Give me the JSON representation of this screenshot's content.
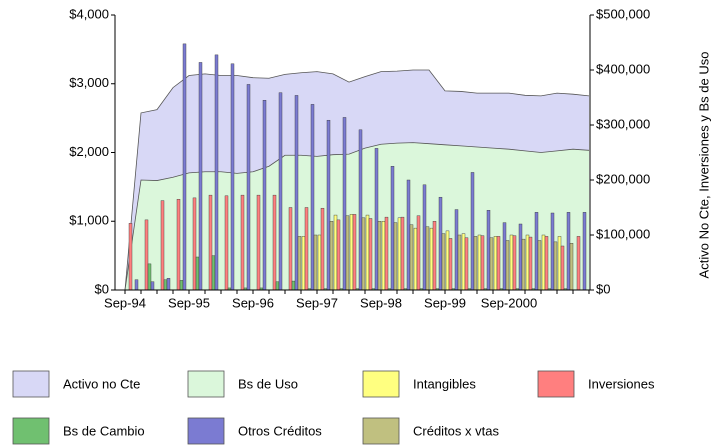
{
  "chart_data": {
    "type": "bar",
    "y2_label": "Activo No Cte, Inversiones y Bs de Uso",
    "categories": [
      "Sep-94",
      null,
      null,
      null,
      "Sep-95",
      null,
      null,
      null,
      "Sep-96",
      null,
      null,
      null,
      "Sep-97",
      null,
      null,
      null,
      "Sep-98",
      null,
      null,
      null,
      "Sep-99",
      null,
      null,
      null,
      "Sep-2000",
      null,
      null,
      null,
      null,
      null
    ],
    "ylim": [
      0,
      4000
    ],
    "yticks": [
      {
        "value": 0,
        "label": "$0"
      },
      {
        "value": 1000,
        "label": "$1,000"
      },
      {
        "value": 2000,
        "label": "$2,000"
      },
      {
        "value": 3000,
        "label": "$3,000"
      },
      {
        "value": 4000,
        "label": "$4,000"
      }
    ],
    "y2lim": [
      0,
      500000
    ],
    "y2ticks": [
      {
        "value": 0,
        "label": "$0"
      },
      {
        "value": 100000,
        "label": "$100,000"
      },
      {
        "value": 200000,
        "label": "$200,000"
      },
      {
        "value": 300000,
        "label": "$300,000"
      },
      {
        "value": 400000,
        "label": "$400,000"
      },
      {
        "value": 500000,
        "label": "$500,000"
      }
    ],
    "series": [
      {
        "name": "Activo no Cte",
        "type": "area",
        "axis": "y2",
        "color": "#d8d8f6",
        "values": [
          0,
          322000,
          328000,
          368000,
          390000,
          393000,
          390000,
          390000,
          386000,
          385000,
          392000,
          395000,
          397000,
          393000,
          378000,
          388000,
          397000,
          398000,
          400000,
          400000,
          362000,
          361000,
          358000,
          358000,
          358000,
          354000,
          353000,
          358000,
          356000,
          353000
        ]
      },
      {
        "name": "Bs de Uso",
        "type": "area",
        "axis": "y2",
        "color": "#dbf7db",
        "values": [
          0,
          200000,
          199000,
          205000,
          213000,
          215000,
          215000,
          212000,
          215000,
          225000,
          245000,
          245000,
          243000,
          246000,
          247000,
          258000,
          265000,
          267000,
          268000,
          266000,
          264000,
          262000,
          260000,
          258000,
          256000,
          253000,
          250000,
          253000,
          256000,
          254000
        ]
      },
      {
        "name": "Intangibles",
        "type": "bar",
        "color": "#ffff80",
        "values": [
          0,
          0,
          0,
          0,
          0,
          0,
          0,
          0,
          0,
          0,
          0,
          0,
          780,
          800,
          1090,
          1100,
          1090,
          1000,
          1050,
          900,
          900,
          860,
          820,
          800,
          780,
          800,
          800,
          800,
          780,
          0
        ]
      },
      {
        "name": "Inversiones",
        "type": "bar",
        "color": "#ff7f7f",
        "values": [
          0,
          970,
          1020,
          1300,
          1320,
          1340,
          1380,
          1370,
          1380,
          1380,
          1380,
          1200,
          1200,
          1190,
          1020,
          1100,
          1040,
          1060,
          1060,
          1080,
          1000,
          750,
          760,
          790,
          780,
          790,
          770,
          780,
          640,
          780
        ]
      },
      {
        "name": "Bs de Cambio",
        "type": "bar",
        "color": "#70c070",
        "values": [
          0,
          0,
          380,
          150,
          140,
          480,
          500,
          30,
          30,
          30,
          120,
          130,
          20,
          20,
          20,
          20,
          20,
          20,
          20,
          20,
          20,
          20,
          20,
          20,
          20,
          20,
          20,
          20,
          20,
          0
        ]
      },
      {
        "name": "Otros Créditos",
        "type": "bar",
        "color": "#7b7bd2",
        "values": [
          0,
          150,
          120,
          170,
          3580,
          3310,
          3420,
          3290,
          2990,
          2760,
          2870,
          2830,
          2700,
          2470,
          2510,
          2330,
          2060,
          1800,
          1600,
          1530,
          1350,
          1170,
          1710,
          1160,
          980,
          960,
          1130,
          1120,
          1130,
          1130
        ]
      },
      {
        "name": "Créditos x vtas",
        "type": "bar",
        "color": "#c0c080",
        "values": [
          0,
          0,
          0,
          0,
          0,
          0,
          0,
          0,
          0,
          0,
          0,
          780,
          800,
          1000,
          1080,
          1050,
          1000,
          980,
          950,
          920,
          820,
          800,
          780,
          760,
          720,
          740,
          720,
          700,
          680,
          0
        ]
      }
    ]
  }
}
